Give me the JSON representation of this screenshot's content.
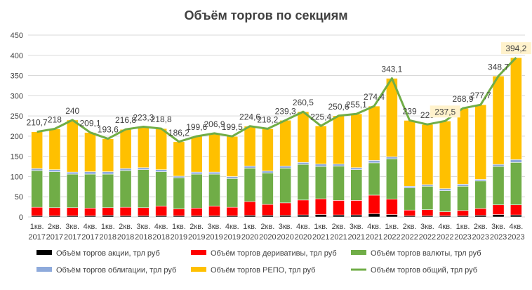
{
  "chart_data": {
    "type": "bar",
    "title": "Объём торгов по секциям",
    "xlabel": "",
    "ylabel": "",
    "ylim": [
      0,
      450
    ],
    "yticks": [
      0,
      50,
      100,
      150,
      200,
      250,
      300,
      350,
      400,
      450
    ],
    "grid": true,
    "legend_position": "bottom",
    "categories": [
      [
        "1кв.",
        "2017"
      ],
      [
        "2кв.",
        "2017"
      ],
      [
        "3кв.",
        "2017"
      ],
      [
        "4кв.",
        "2017"
      ],
      [
        "1кв.",
        "2018"
      ],
      [
        "2кв.",
        "2018"
      ],
      [
        "3кв.",
        "2018"
      ],
      [
        "4кв.",
        "2018"
      ],
      [
        "1кв.",
        "2019"
      ],
      [
        "2кв.",
        "2019"
      ],
      [
        "3кв.",
        "2019"
      ],
      [
        "4кв.",
        "2019"
      ],
      [
        "1кв.",
        "2020"
      ],
      [
        "2кв.",
        "2020"
      ],
      [
        "3кв.",
        "2020"
      ],
      [
        "4кв.",
        "2020"
      ],
      [
        "1кв.",
        "2021"
      ],
      [
        "2кв.",
        "2021"
      ],
      [
        "3кв.",
        "2021"
      ],
      [
        "4кв.",
        "2021"
      ],
      [
        "1кв.",
        "2022"
      ],
      [
        "2кв.",
        "2022"
      ],
      [
        "3кв.",
        "2022"
      ],
      [
        "4кв.",
        "2022"
      ],
      [
        "1кв.",
        "2023"
      ],
      [
        "2кв.",
        "2023"
      ],
      [
        "3кв.",
        "2023"
      ],
      [
        "4кв.",
        "2023"
      ]
    ],
    "series": [
      {
        "name": "Объём торгов акции, трл руб",
        "kind": "bar",
        "color": "#000000",
        "values": [
          3,
          3,
          3,
          3,
          4,
          3,
          3,
          3,
          3,
          3,
          3,
          3,
          4,
          4,
          4,
          5,
          6,
          5,
          5,
          8,
          6,
          3,
          3,
          3,
          3,
          4,
          6,
          5
        ]
      },
      {
        "name": "Объём торгов деривативы, трл руб",
        "kind": "bar",
        "color": "#ff0000",
        "values": [
          21,
          20,
          20,
          19,
          19,
          21,
          20,
          24,
          17,
          19,
          24,
          21,
          34,
          27,
          31,
          37,
          39,
          36,
          36,
          46,
          38,
          14,
          15,
          10,
          13,
          17,
          24,
          25
        ]
      },
      {
        "name": "Объём торгов валюты, трл руб",
        "kind": "bar",
        "color": "#70ad47",
        "values": [
          91,
          89,
          83,
          84,
          83,
          91,
          94,
          85,
          77,
          84,
          79,
          71,
          83,
          78,
          86,
          88,
          80,
          85,
          76,
          80,
          100,
          55,
          58,
          52,
          60,
          68,
          95,
          105
        ]
      },
      {
        "name": "Объём торгов облигации, трл руб",
        "kind": "bar",
        "color": "#8eaadb",
        "values": [
          5,
          5,
          5,
          6,
          6,
          5,
          5,
          5,
          4,
          5,
          5,
          5,
          5,
          5,
          5,
          5,
          6,
          5,
          5,
          6,
          5,
          4,
          4,
          5,
          5,
          4,
          5,
          7
        ]
      },
      {
        "name": "Объём торгов РЕПО, трл руб",
        "kind": "bar",
        "color": "#ffc000",
        "values": [
          90.7,
          101,
          129,
          97.1,
          81.6,
          96.8,
          101.3,
          101.8,
          85.2,
          88.6,
          95.9,
          99.5,
          98.6,
          104.2,
          113.3,
          125.5,
          94.4,
          119.6,
          133.1,
          134.4,
          194.1,
          163,
          149,
          167.5,
          187.9,
          184.7,
          218.7,
          252.2
        ]
      },
      {
        "name": "Объём торгов общий, трл руб",
        "kind": "line",
        "color": "#70ad47",
        "values": [
          210.7,
          218,
          240,
          209.1,
          193.6,
          216.8,
          223.3,
          218.8,
          186.2,
          199.6,
          206.9,
          199.5,
          224.6,
          218.2,
          239.3,
          260.5,
          225.4,
          250.6,
          255.1,
          274.4,
          343.1,
          239,
          229,
          237.5,
          268.9,
          277.7,
          348.7,
          394.2
        ]
      }
    ],
    "data_labels": [
      "210,7",
      "218",
      "240",
      "209,1",
      "193,6",
      "216,8",
      "223,3",
      "218,8",
      "186,2",
      "199,6",
      "206,9",
      "199,5",
      "224,6",
      "218,2",
      "239,3",
      "260,5",
      "225,4",
      "250,6",
      "255,1",
      "274,4",
      "343,1",
      "239",
      "229",
      "237,5",
      "268,9",
      "277,7",
      "348,7",
      "394,2"
    ],
    "highlighted_labels": [
      23,
      27
    ],
    "highlight_color": "#fff2cc"
  }
}
